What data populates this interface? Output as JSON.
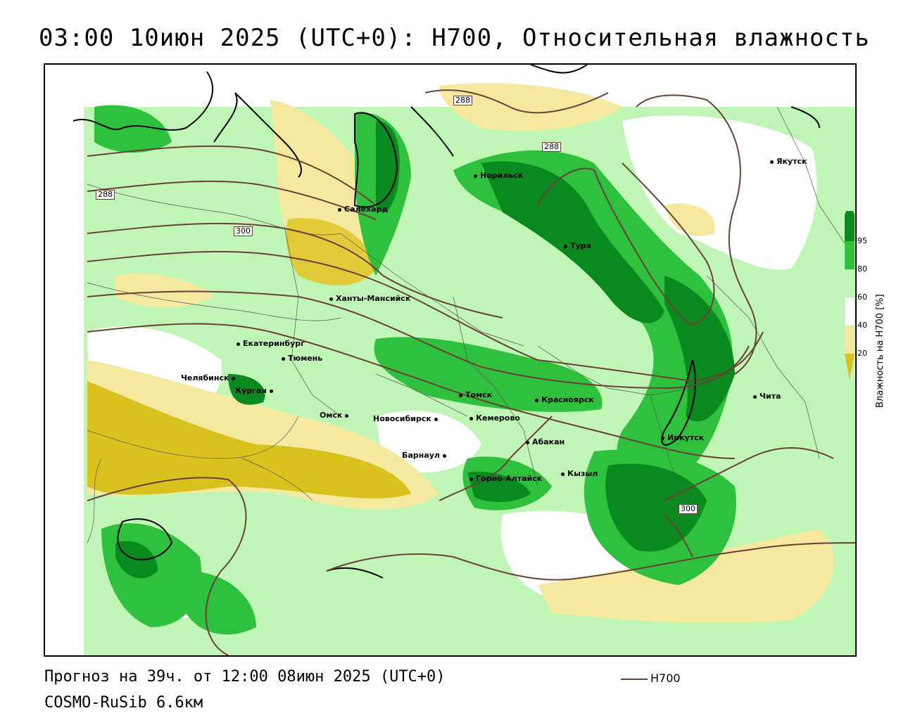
{
  "title": "03:00 10июн 2025 (UTC+0): H700, Относительная влажность",
  "footer": {
    "forecast": "Прогноз на 39ч. от 12:00 08июн 2025 (UTC+0)",
    "model": "COSMO-RuSib 6.6км"
  },
  "legend": {
    "unit_label": "Влажность на H700 [%]",
    "ticks": [
      "95",
      "80",
      "60",
      "40",
      "20"
    ],
    "colors": {
      "c95": "#0a8a1e",
      "c80": "#2fc03e",
      "c60": "#bff5b5",
      "c40": "#ffffff",
      "c20": "#f5e9a0",
      "c0": "#d9c21d"
    }
  },
  "line_key": {
    "label": "H700",
    "color": "#6b3f3a"
  },
  "isolines": [
    "288",
    "288",
    "288",
    "300",
    "300"
  ],
  "cities": [
    {
      "name": "Якутск"
    },
    {
      "name": "Норильск"
    },
    {
      "name": "Салехард"
    },
    {
      "name": "Тура"
    },
    {
      "name": "Ханты-Мансийск"
    },
    {
      "name": "Екатеринбург"
    },
    {
      "name": "Тюмень"
    },
    {
      "name": "Челябинск"
    },
    {
      "name": "Курган"
    },
    {
      "name": "Омск"
    },
    {
      "name": "Новосибирск"
    },
    {
      "name": "Томск"
    },
    {
      "name": "Кемерово"
    },
    {
      "name": "Красноярск"
    },
    {
      "name": "Барнаул"
    },
    {
      "name": "Абакан"
    },
    {
      "name": "Горно-Алтайск"
    },
    {
      "name": "Кызыл"
    },
    {
      "name": "Иркутск"
    },
    {
      "name": "Чита"
    }
  ]
}
